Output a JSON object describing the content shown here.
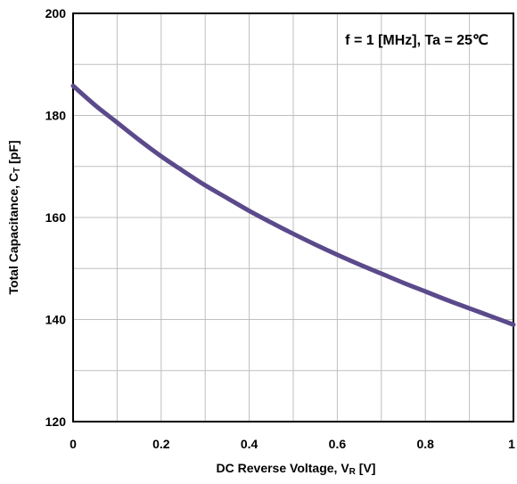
{
  "chart_data": {
    "type": "line",
    "annotation": "f = 1 [MHz], Ta = 25℃",
    "xlabel": "DC Reverse Voltage, V",
    "xlabel_sub": "R",
    "xlabel_suffix": " [V]",
    "ylabel": "Total Capacitance, C",
    "ylabel_sub": "T",
    "ylabel_suffix": " [pF]",
    "xlim": [
      0,
      1
    ],
    "ylim": [
      120,
      200
    ],
    "x_ticks": [
      "0",
      "0.2",
      "0.4",
      "0.6",
      "0.8",
      "1"
    ],
    "y_ticks": [
      "120",
      "140",
      "160",
      "180",
      "200"
    ],
    "grid": true,
    "line_color": "#5b4a8b",
    "series": [
      {
        "x": [
          0,
          0.05,
          0.1,
          0.15,
          0.2,
          0.25,
          0.3,
          0.35,
          0.4,
          0.45,
          0.5,
          0.55,
          0.6,
          0.65,
          0.7,
          0.75,
          0.8,
          0.85,
          0.9,
          0.95,
          1.0
        ],
        "values": [
          185.8,
          182.0,
          178.6,
          175.2,
          172.0,
          169.1,
          166.3,
          163.8,
          161.3,
          159.0,
          156.8,
          154.7,
          152.7,
          150.8,
          149.0,
          147.2,
          145.5,
          143.8,
          142.2,
          140.6,
          139.0
        ]
      }
    ]
  }
}
